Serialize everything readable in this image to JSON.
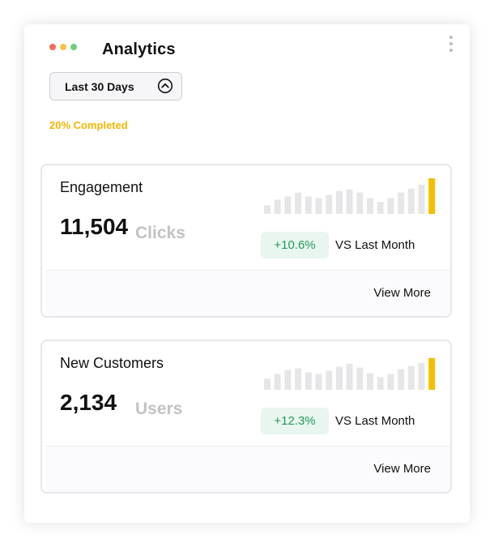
{
  "header": {
    "window_dots": [
      "#f26d5b",
      "#f6c244",
      "#6fce7c"
    ],
    "title": "Analytics",
    "menu_icon": "kebab-icon"
  },
  "filter": {
    "selected": "Last 30 Days",
    "icon": "chevron-up-circle-icon"
  },
  "progress": {
    "text": "20% Completed",
    "color": "#f2b705"
  },
  "colors": {
    "bar_default": "#e6e6e8",
    "bar_highlight": "#f6be00",
    "positive": "#1f9a57",
    "positive_bg": "#e9f6f0"
  },
  "metrics": [
    {
      "title": "Engagement",
      "value": "11,504",
      "unit": "Clicks",
      "change": "+10.6%",
      "comparison": "VS Last Month",
      "link": "View More",
      "sparkline": [
        11,
        18,
        22,
        27,
        22,
        20,
        24,
        29,
        31,
        27,
        20,
        15,
        20,
        27,
        32,
        37,
        45
      ]
    },
    {
      "title": "New Customers",
      "value": "2,134",
      "unit": "Users",
      "change": "+12.3%",
      "comparison": "VS Last Month",
      "link": "View More",
      "sparkline": [
        14,
        20,
        25,
        27,
        22,
        20,
        24,
        29,
        33,
        28,
        21,
        16,
        20,
        26,
        30,
        34,
        40
      ]
    }
  ]
}
